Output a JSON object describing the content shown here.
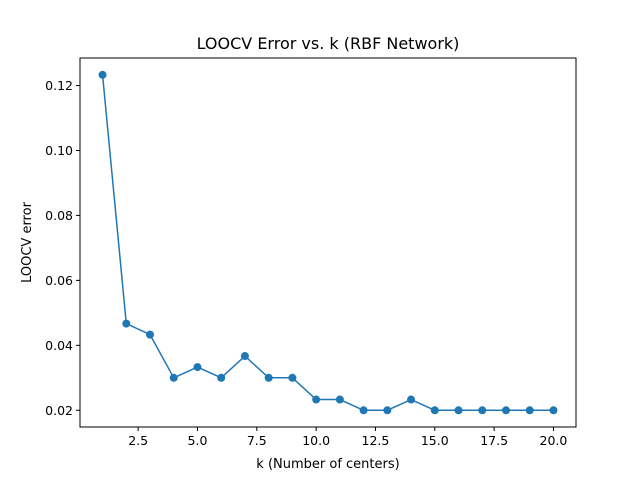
{
  "chart_data": {
    "type": "line",
    "title": "LOOCV Error vs. k (RBF Network)",
    "xlabel": "k (Number of centers)",
    "ylabel": "LOOCV error",
    "xlim": [
      0.05,
      20.95
    ],
    "ylim": [
      0.01485,
      0.12848
    ],
    "xticks": [
      2.5,
      5.0,
      7.5,
      10.0,
      12.5,
      15.0,
      17.5,
      20.0
    ],
    "xtick_labels": [
      "2.5",
      "5.0",
      "7.5",
      "10.0",
      "12.5",
      "15.0",
      "17.5",
      "20.0"
    ],
    "yticks": [
      0.02,
      0.04,
      0.06,
      0.08,
      0.1,
      0.12
    ],
    "ytick_labels": [
      "0.02",
      "0.04",
      "0.06",
      "0.08",
      "0.10",
      "0.12"
    ],
    "grid": false,
    "series": [
      {
        "color": "#1f77b4",
        "marker": "circle",
        "x": [
          1,
          2,
          3,
          4,
          5,
          6,
          7,
          8,
          9,
          10,
          11,
          12,
          13,
          14,
          15,
          16,
          17,
          18,
          19,
          20
        ],
        "y": [
          0.1233,
          0.0467,
          0.0433,
          0.03,
          0.0333,
          0.03,
          0.0367,
          0.03,
          0.03,
          0.0233,
          0.0233,
          0.02,
          0.02,
          0.0233,
          0.02,
          0.02,
          0.02,
          0.02,
          0.02,
          0.02
        ]
      }
    ]
  }
}
